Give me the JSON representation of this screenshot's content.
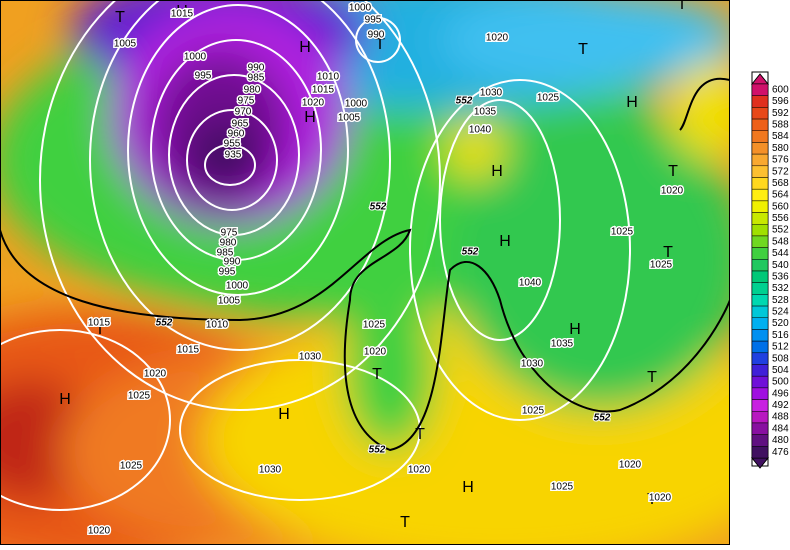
{
  "colorbar": {
    "labels": [
      600,
      596,
      592,
      588,
      584,
      580,
      576,
      572,
      568,
      564,
      560,
      556,
      552,
      548,
      544,
      540,
      536,
      532,
      528,
      524,
      520,
      516,
      512,
      508,
      504,
      500,
      496,
      492,
      488,
      484,
      480,
      476
    ]
  },
  "centers": [
    "T",
    "H",
    "T",
    "H",
    "T",
    "H",
    "H",
    "H",
    "T",
    "H",
    "T",
    "T",
    "H",
    "T",
    "T",
    "H",
    "H",
    "T",
    "H",
    "T",
    "T",
    "T"
  ],
  "contours": [
    1005,
    1000,
    995,
    990,
    985,
    980,
    975,
    970,
    965,
    960,
    955,
    935,
    1000,
    995,
    990,
    1020,
    1025,
    1010,
    1015,
    1020,
    1000,
    1005,
    1030,
    1035,
    1040,
    975,
    980,
    985,
    990,
    995,
    1000,
    1005,
    1010,
    1015,
    1020,
    1025,
    1015,
    1030,
    1025,
    1020,
    1040,
    1035,
    1030,
    1025,
    1020,
    1025,
    1025,
    1020,
    1025,
    1030,
    1025,
    1020,
    1020,
    1020,
    1015
  ],
  "thickness_labels": [
    552,
    552,
    552,
    552,
    552,
    552
  ]
}
